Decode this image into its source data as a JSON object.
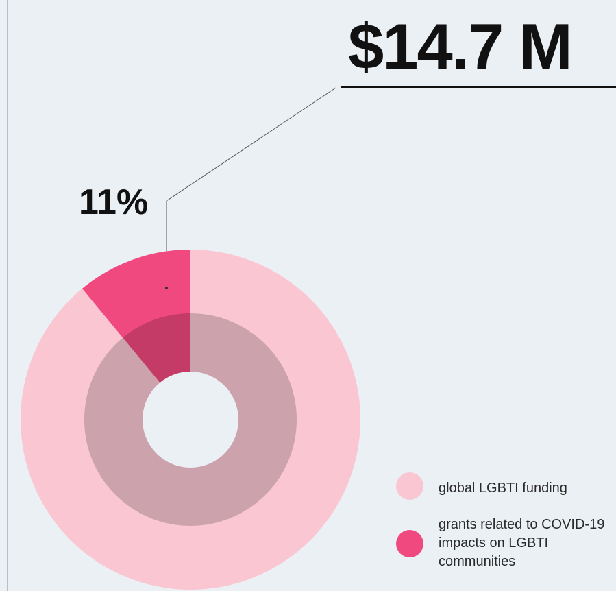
{
  "chart_data": {
    "type": "pie",
    "annotation": "$14.7 M",
    "categories": [
      "global LGBTI funding",
      "grants related to COVID-19 impacts on LGBTI communities"
    ],
    "values": [
      89,
      11
    ],
    "value_labels": [
      null,
      "11%"
    ],
    "colors": [
      "#f9c6d2",
      "#f0497f"
    ]
  }
}
